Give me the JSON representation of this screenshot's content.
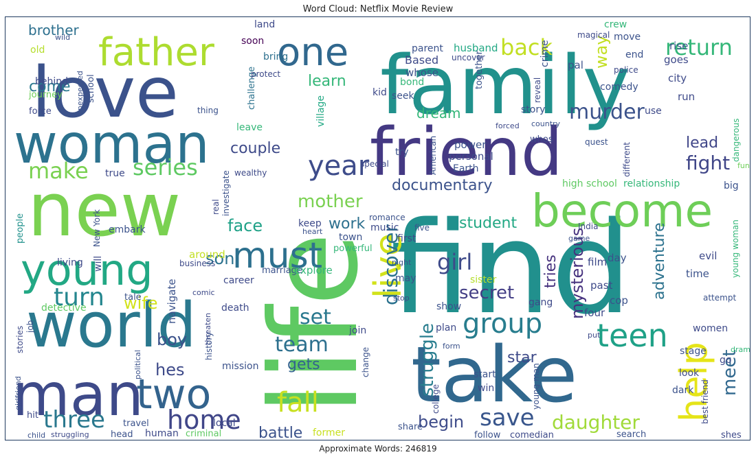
{
  "title": "Word Cloud: Netflix Movie Review",
  "footer": "Approximate Words: 246819",
  "chart_data": {
    "type": "wordcloud",
    "title": "Word Cloud: Netflix Movie Review",
    "words": [
      {
        "text": "find",
        "weight": 100,
        "color": "#21908d"
      },
      {
        "text": "life",
        "weight": 98,
        "color": "#5ec962"
      },
      {
        "text": "family",
        "weight": 80,
        "color": "#21918c"
      },
      {
        "text": "new",
        "weight": 78,
        "color": "#7ad151"
      },
      {
        "text": "take",
        "weight": 76,
        "color": "#31688e"
      },
      {
        "text": "love",
        "weight": 74,
        "color": "#3b528b"
      },
      {
        "text": "friend",
        "weight": 70,
        "color": "#443983"
      },
      {
        "text": "world",
        "weight": 66,
        "color": "#2a788e"
      },
      {
        "text": "man",
        "weight": 64,
        "color": "#3e4a89"
      },
      {
        "text": "woman",
        "weight": 60,
        "color": "#2c728e"
      },
      {
        "text": "become",
        "weight": 52,
        "color": "#6ece58"
      },
      {
        "text": "young",
        "weight": 50,
        "color": "#22a884"
      },
      {
        "text": "father",
        "weight": 44,
        "color": "#addc30"
      },
      {
        "text": "one",
        "weight": 44,
        "color": "#31688e"
      },
      {
        "text": "two",
        "weight": 42,
        "color": "#33638d"
      },
      {
        "text": "live",
        "weight": 42,
        "color": "#d2e21b"
      },
      {
        "text": "help",
        "weight": 40,
        "color": "#e5e419"
      },
      {
        "text": "must",
        "weight": 38,
        "color": "#2d708e"
      },
      {
        "text": "teen",
        "weight": 34,
        "color": "#1fa187"
      },
      {
        "text": "group",
        "weight": 32,
        "color": "#287d8e"
      },
      {
        "text": "year",
        "weight": 30,
        "color": "#3e4c8a"
      },
      {
        "text": "fall",
        "weight": 30,
        "color": "#c8e020"
      },
      {
        "text": "home",
        "weight": 30,
        "color": "#404688"
      },
      {
        "text": "turn",
        "weight": 28,
        "color": "#24868e"
      },
      {
        "text": "three",
        "weight": 28,
        "color": "#2a788e"
      },
      {
        "text": "save",
        "weight": 28,
        "color": "#39568c"
      },
      {
        "text": "back",
        "weight": 26,
        "color": "#c2df23"
      },
      {
        "text": "return",
        "weight": 26,
        "color": "#35b779"
      },
      {
        "text": "series",
        "weight": 26,
        "color": "#5ec962"
      },
      {
        "text": "make",
        "weight": 26,
        "color": "#7ad151"
      },
      {
        "text": "murder",
        "weight": 24,
        "color": "#3b528b"
      },
      {
        "text": "team",
        "weight": 24,
        "color": "#2d708e"
      },
      {
        "text": "set",
        "weight": 24,
        "color": "#2a788e"
      },
      {
        "text": "fight",
        "weight": 22,
        "color": "#404688"
      },
      {
        "text": "girl",
        "weight": 22,
        "color": "#3e4a89"
      },
      {
        "text": "discover",
        "weight": 22,
        "color": "#2c728e"
      },
      {
        "text": "daughter",
        "weight": 22,
        "color": "#a0da39"
      },
      {
        "text": "struggle",
        "weight": 20,
        "color": "#287d8e"
      },
      {
        "text": "secret",
        "weight": 20,
        "color": "#433e85"
      },
      {
        "text": "mother",
        "weight": 20,
        "color": "#7ad151"
      },
      {
        "text": "meet",
        "weight": 20,
        "color": "#31688e"
      },
      {
        "text": "mysterious",
        "weight": 18,
        "color": "#46327e"
      },
      {
        "text": "face",
        "weight": 18,
        "color": "#1fa187"
      },
      {
        "text": "son",
        "weight": 18,
        "color": "#2c728e"
      },
      {
        "text": "wife",
        "weight": 18,
        "color": "#d2e21b"
      },
      {
        "text": "boy",
        "weight": 18,
        "color": "#3b528b"
      },
      {
        "text": "hes",
        "weight": 18,
        "color": "#3e4a89"
      },
      {
        "text": "documentary",
        "weight": 18,
        "color": "#3b528b"
      },
      {
        "text": "student",
        "weight": 18,
        "color": "#22a884"
      },
      {
        "text": "adventure",
        "weight": 18,
        "color": "#2c728e"
      },
      {
        "text": "begin",
        "weight": 18,
        "color": "#3e4c8a"
      },
      {
        "text": "battle",
        "weight": 16,
        "color": "#3b528b"
      },
      {
        "text": "couple",
        "weight": 16,
        "color": "#3e4a89"
      },
      {
        "text": "work",
        "weight": 16,
        "color": "#2d708e"
      },
      {
        "text": "lead",
        "weight": 16,
        "color": "#404688"
      },
      {
        "text": "gets",
        "weight": 16,
        "color": "#33638d"
      },
      {
        "text": "come",
        "weight": 16,
        "color": "#2a788e"
      },
      {
        "text": "learn",
        "weight": 16,
        "color": "#35b779"
      },
      {
        "text": "star",
        "weight": 16,
        "color": "#3e4a89"
      },
      {
        "text": "dream",
        "weight": 16,
        "color": "#35b779"
      },
      {
        "text": "brother",
        "weight": 14,
        "color": "#2d708e"
      },
      {
        "text": "way",
        "weight": 14,
        "color": "#c2df23"
      },
      {
        "text": "tries",
        "weight": 14,
        "color": "#46327e"
      },
      {
        "text": "people",
        "weight": 11,
        "color": "#21918c"
      },
      {
        "text": "school",
        "weight": 10,
        "color": "#3b528b"
      },
      {
        "text": "journey",
        "weight": 10,
        "color": "#6ece58"
      },
      {
        "text": "behind",
        "weight": 10,
        "color": "#3e4a89"
      },
      {
        "text": "force",
        "weight": 10,
        "color": "#3e4a89"
      },
      {
        "text": "old",
        "weight": 10,
        "color": "#b5de2b"
      },
      {
        "text": "wild",
        "weight": 8,
        "color": "#3b528b"
      },
      {
        "text": "unexpected",
        "weight": 8,
        "color": "#3b528b"
      },
      {
        "text": "soon",
        "weight": 10,
        "color": "#440154"
      },
      {
        "text": "land",
        "weight": 10,
        "color": "#3e4a89"
      },
      {
        "text": "bring",
        "weight": 10,
        "color": "#2d708e"
      },
      {
        "text": "challenge",
        "weight": 10,
        "color": "#2c728e"
      },
      {
        "text": "protect",
        "weight": 8,
        "color": "#3e4a89"
      },
      {
        "text": "thing",
        "weight": 8,
        "color": "#3b528b"
      },
      {
        "text": "leave",
        "weight": 10,
        "color": "#35b779"
      },
      {
        "text": "wealthy",
        "weight": 8,
        "color": "#3e4a89"
      },
      {
        "text": "village",
        "weight": 10,
        "color": "#22a884"
      },
      {
        "text": "whose",
        "weight": 11,
        "color": "#3b528b"
      },
      {
        "text": "Based",
        "weight": 11,
        "color": "#3e4a89"
      },
      {
        "text": "parent",
        "weight": 10,
        "color": "#3b528b"
      },
      {
        "text": "husband",
        "weight": 11,
        "color": "#22a884"
      },
      {
        "text": "uncover",
        "weight": 8,
        "color": "#3e4a89"
      },
      {
        "text": "bond",
        "weight": 10,
        "color": "#35b779"
      },
      {
        "text": "seek",
        "weight": 10,
        "color": "#3b528b"
      },
      {
        "text": "kid",
        "weight": 10,
        "color": "#3e4a89"
      },
      {
        "text": "together",
        "weight": 10,
        "color": "#3b528b"
      },
      {
        "text": "crime",
        "weight": 10,
        "color": "#3b528b"
      },
      {
        "text": "reveal",
        "weight": 8,
        "color": "#3e4a89"
      },
      {
        "text": "crew",
        "weight": 10,
        "color": "#35b779"
      },
      {
        "text": "move",
        "weight": 10,
        "color": "#3b528b"
      },
      {
        "text": "magical",
        "weight": 8,
        "color": "#3e4a89"
      },
      {
        "text": "end",
        "weight": 10,
        "color": "#3b528b"
      },
      {
        "text": "police",
        "weight": 10,
        "color": "#3e4a89"
      },
      {
        "text": "rise",
        "weight": 11,
        "color": "#3b528b"
      },
      {
        "text": "goes",
        "weight": 11,
        "color": "#3e4a89"
      },
      {
        "text": "pal",
        "weight": 11,
        "color": "#3b528b"
      },
      {
        "text": "city",
        "weight": 11,
        "color": "#3e4a89"
      },
      {
        "text": "comedy",
        "weight": 10,
        "color": "#3b528b"
      },
      {
        "text": "run",
        "weight": 11,
        "color": "#3e4a89"
      },
      {
        "text": "story",
        "weight": 10,
        "color": "#3b528b"
      },
      {
        "text": "use",
        "weight": 10,
        "color": "#3e4a89"
      },
      {
        "text": "country",
        "weight": 8,
        "color": "#3b528b"
      },
      {
        "text": "forced",
        "weight": 8,
        "color": "#3e4a89"
      },
      {
        "text": "power",
        "weight": 11,
        "color": "#3b528b"
      },
      {
        "text": "personal",
        "weight": 11,
        "color": "#3e4a89"
      },
      {
        "text": "Earth",
        "weight": 10,
        "color": "#3b528b"
      },
      {
        "text": "whos",
        "weight": 10,
        "color": "#3e4a89"
      },
      {
        "text": "quest",
        "weight": 8,
        "color": "#3b528b"
      },
      {
        "text": "different",
        "weight": 10,
        "color": "#3e4a89"
      },
      {
        "text": "dangerous",
        "weight": 9,
        "color": "#35b779"
      },
      {
        "text": "fun",
        "weight": 8,
        "color": "#6ece58"
      },
      {
        "text": "try",
        "weight": 10,
        "color": "#3b528b"
      },
      {
        "text": "special",
        "weight": 8,
        "color": "#3e4a89"
      },
      {
        "text": "American",
        "weight": 9,
        "color": "#3b528b"
      },
      {
        "text": "high school",
        "weight": 10,
        "color": "#5ec962"
      },
      {
        "text": "relationship",
        "weight": 10,
        "color": "#35b779"
      },
      {
        "text": "big",
        "weight": 10,
        "color": "#3b528b"
      },
      {
        "text": "true",
        "weight": 10,
        "color": "#3e4a89"
      },
      {
        "text": "investigate",
        "weight": 8,
        "color": "#3b528b"
      },
      {
        "text": "real",
        "weight": 8,
        "color": "#3e4a89"
      },
      {
        "text": "romance",
        "weight": 9,
        "color": "#3b528b"
      },
      {
        "text": "music",
        "weight": 10,
        "color": "#3e4a89"
      },
      {
        "text": "five",
        "weight": 9,
        "color": "#3b528b"
      },
      {
        "text": "first",
        "weight": 10,
        "color": "#3e4a89"
      },
      {
        "text": "town",
        "weight": 10,
        "color": "#3b528b"
      },
      {
        "text": "keep",
        "weight": 10,
        "color": "#3e4a89"
      },
      {
        "text": "powerful",
        "weight": 9,
        "color": "#35b779"
      },
      {
        "text": "heart",
        "weight": 8,
        "color": "#3b528b"
      },
      {
        "text": "India",
        "weight": 8,
        "color": "#3e4a89"
      },
      {
        "text": "game",
        "weight": 8,
        "color": "#3b528b"
      },
      {
        "text": "evil",
        "weight": 11,
        "color": "#3e4a89"
      },
      {
        "text": "young woman",
        "weight": 10,
        "color": "#35b779"
      },
      {
        "text": "day",
        "weight": 10,
        "color": "#3b528b"
      },
      {
        "text": "film",
        "weight": 10,
        "color": "#3e4a89"
      },
      {
        "text": "time",
        "weight": 10,
        "color": "#3b528b"
      },
      {
        "text": "past",
        "weight": 10,
        "color": "#3e4a89"
      },
      {
        "text": "cop",
        "weight": 10,
        "color": "#3b528b"
      },
      {
        "text": "four",
        "weight": 10,
        "color": "#3e4a89"
      },
      {
        "text": "attempt",
        "weight": 8,
        "color": "#3b528b"
      },
      {
        "text": "women",
        "weight": 10,
        "color": "#3e4a89"
      },
      {
        "text": "night",
        "weight": 8,
        "color": "#3b528b"
      },
      {
        "text": "gang",
        "weight": 10,
        "color": "#3e4a89"
      },
      {
        "text": "sister",
        "weight": 10,
        "color": "#b5de2b"
      },
      {
        "text": "may",
        "weight": 10,
        "color": "#3b528b"
      },
      {
        "text": "stop",
        "weight": 8,
        "color": "#3e4a89"
      },
      {
        "text": "show",
        "weight": 10,
        "color": "#3b528b"
      },
      {
        "text": "living",
        "weight": 10,
        "color": "#3e4a89"
      },
      {
        "text": "New York",
        "weight": 10,
        "color": "#3b528b"
      },
      {
        "text": "will",
        "weight": 10,
        "color": "#3e4a89"
      },
      {
        "text": "embark",
        "weight": 10,
        "color": "#3b528b"
      },
      {
        "text": "around",
        "weight": 11,
        "color": "#c2df23"
      },
      {
        "text": "business",
        "weight": 9,
        "color": "#3e4a89"
      },
      {
        "text": "marriage",
        "weight": 10,
        "color": "#3b528b"
      },
      {
        "text": "explore",
        "weight": 10,
        "color": "#35b779"
      },
      {
        "text": "career",
        "weight": 10,
        "color": "#3e4a89"
      },
      {
        "text": "tale",
        "weight": 10,
        "color": "#3b528b"
      },
      {
        "text": "comic",
        "weight": 8,
        "color": "#3e4a89"
      },
      {
        "text": "navigate",
        "weight": 10,
        "color": "#3b528b"
      },
      {
        "text": "detective",
        "weight": 10,
        "color": "#5ec962"
      },
      {
        "text": "death",
        "weight": 10,
        "color": "#3e4a89"
      },
      {
        "text": "job",
        "weight": 9,
        "color": "#3b528b"
      },
      {
        "text": "threaten",
        "weight": 8,
        "color": "#3e4a89"
      },
      {
        "text": "history",
        "weight": 9,
        "color": "#3b528b"
      },
      {
        "text": "stories",
        "weight": 9,
        "color": "#3e4a89"
      },
      {
        "text": "political",
        "weight": 8,
        "color": "#3b528b"
      },
      {
        "text": "join",
        "weight": 10,
        "color": "#3e4a89"
      },
      {
        "text": "change",
        "weight": 9,
        "color": "#3b528b"
      },
      {
        "text": "plan",
        "weight": 10,
        "color": "#3e4a89"
      },
      {
        "text": "form",
        "weight": 8,
        "color": "#3b528b"
      },
      {
        "text": "put",
        "weight": 8,
        "color": "#3e4a89"
      },
      {
        "text": "drama",
        "weight": 8,
        "color": "#35b779"
      },
      {
        "text": "stage",
        "weight": 10,
        "color": "#3b528b"
      },
      {
        "text": "go",
        "weight": 10,
        "color": "#3e4a89"
      },
      {
        "text": "mission",
        "weight": 10,
        "color": "#3b528b"
      },
      {
        "text": "college",
        "weight": 9,
        "color": "#3e4a89"
      },
      {
        "text": "start",
        "weight": 10,
        "color": "#3b528b"
      },
      {
        "text": "win",
        "weight": 10,
        "color": "#3e4a89"
      },
      {
        "text": "young man",
        "weight": 9,
        "color": "#3b528b"
      },
      {
        "text": "look",
        "weight": 10,
        "color": "#3e4a89"
      },
      {
        "text": "dark",
        "weight": 10,
        "color": "#3b528b"
      },
      {
        "text": "best friend",
        "weight": 9,
        "color": "#3e4a89"
      },
      {
        "text": "girlfriend",
        "weight": 8,
        "color": "#3b528b"
      },
      {
        "text": "hit",
        "weight": 10,
        "color": "#3e4a89"
      },
      {
        "text": "travel",
        "weight": 10,
        "color": "#3b528b"
      },
      {
        "text": "local",
        "weight": 10,
        "color": "#3e4a89"
      },
      {
        "text": "share",
        "weight": 10,
        "color": "#3b528b"
      },
      {
        "text": "former",
        "weight": 10,
        "color": "#c8e020"
      },
      {
        "text": "child",
        "weight": 9,
        "color": "#3b528b"
      },
      {
        "text": "struggling",
        "weight": 9,
        "color": "#3e4a89"
      },
      {
        "text": "head",
        "weight": 10,
        "color": "#3b528b"
      },
      {
        "text": "human",
        "weight": 10,
        "color": "#3e4a89"
      },
      {
        "text": "criminal",
        "weight": 10,
        "color": "#5ec962"
      },
      {
        "text": "follow",
        "weight": 10,
        "color": "#3b528b"
      },
      {
        "text": "comedian",
        "weight": 10,
        "color": "#3e4a89"
      },
      {
        "text": "search",
        "weight": 10,
        "color": "#3b528b"
      },
      {
        "text": "shes",
        "weight": 10,
        "color": "#3e4a89"
      }
    ]
  }
}
